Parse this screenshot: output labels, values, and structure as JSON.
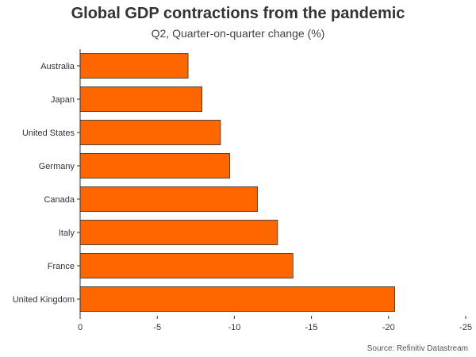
{
  "chart_data": {
    "type": "bar",
    "orientation": "horizontal",
    "title": "Global GDP contractions from the pandemic",
    "subtitle": "Q2, Quarter-on-quarter change (%)",
    "categories": [
      "Australia",
      "Japan",
      "United States",
      "Germany",
      "Canada",
      "Italy",
      "France",
      "United Kingdom"
    ],
    "values": [
      -7.0,
      -7.9,
      -9.1,
      -9.7,
      -11.5,
      -12.8,
      -13.8,
      -20.4
    ],
    "xlim": [
      0,
      -25
    ],
    "x_ticks": [
      0,
      -5,
      -10,
      -15,
      -20,
      -25
    ],
    "x_tick_labels": [
      "0",
      "-5",
      "-10",
      "-15",
      "-20",
      "-25"
    ],
    "bar_color": "#ff6600",
    "bar_edge_color": "#333333",
    "grid": false,
    "legend": "none",
    "source": "Source: Refinitiv Datastream"
  }
}
